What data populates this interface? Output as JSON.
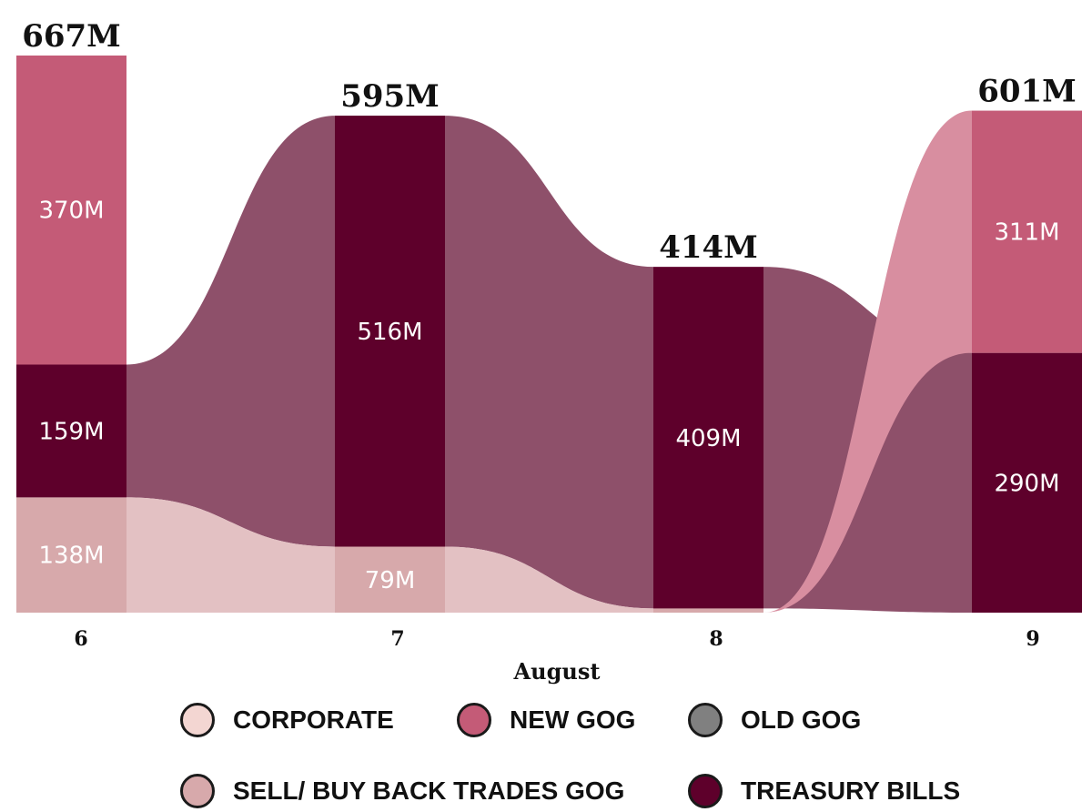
{
  "chart_data": {
    "type": "ribbon",
    "xlabel": "August",
    "categories": [
      "6",
      "7",
      "8",
      "9"
    ],
    "series": [
      {
        "name": "CORPORATE",
        "color": "#e3c1c3",
        "values": [
          0,
          0,
          0,
          0
        ]
      },
      {
        "name": "NEW GOG",
        "color": "#c45b77",
        "values": [
          370,
          0,
          0,
          290
        ]
      },
      {
        "name": "OLD GOG",
        "color": "#8e506a",
        "values": [
          0,
          0,
          0,
          0
        ]
      },
      {
        "name": "SELL/ BUY BACK TRADES GOG",
        "color": "#d7a9ab",
        "values": [
          138,
          79,
          5,
          0
        ]
      },
      {
        "name": "TREASURY BILLS",
        "color": "#5e002b",
        "values": [
          159,
          516,
          409,
          311
        ]
      }
    ],
    "segment_labels": [
      [
        "138M",
        "159M",
        "370M"
      ],
      [
        "79M",
        "516M"
      ],
      [
        "409M"
      ],
      [
        "290M",
        "311M"
      ]
    ],
    "totals": [
      "667M",
      "595M",
      "414M",
      "601M"
    ],
    "legend_colors": {
      "CORPORATE": "#f3d6d2",
      "NEW GOG": "#c45b77",
      "OLD GOG": "#808080",
      "SELL/ BUY BACK TRADES GOG": "#d7a9ab",
      "TREASURY BILLS": "#5e002b"
    },
    "ribbon_colors": {
      "flow_dark": "#8e506a",
      "flow_light": "#e3c1c3",
      "flow_pink": "#d88ea0"
    }
  },
  "legend": {
    "items": [
      {
        "label": "CORPORATE",
        "color": "#f3d6d2"
      },
      {
        "label": "NEW GOG",
        "color": "#c45b77"
      },
      {
        "label": "OLD GOG",
        "color": "#808080"
      },
      {
        "label": "SELL/ BUY BACK TRADES GOG",
        "color": "#d7a9ab"
      },
      {
        "label": "TREASURY BILLS",
        "color": "#5e002b"
      }
    ]
  }
}
